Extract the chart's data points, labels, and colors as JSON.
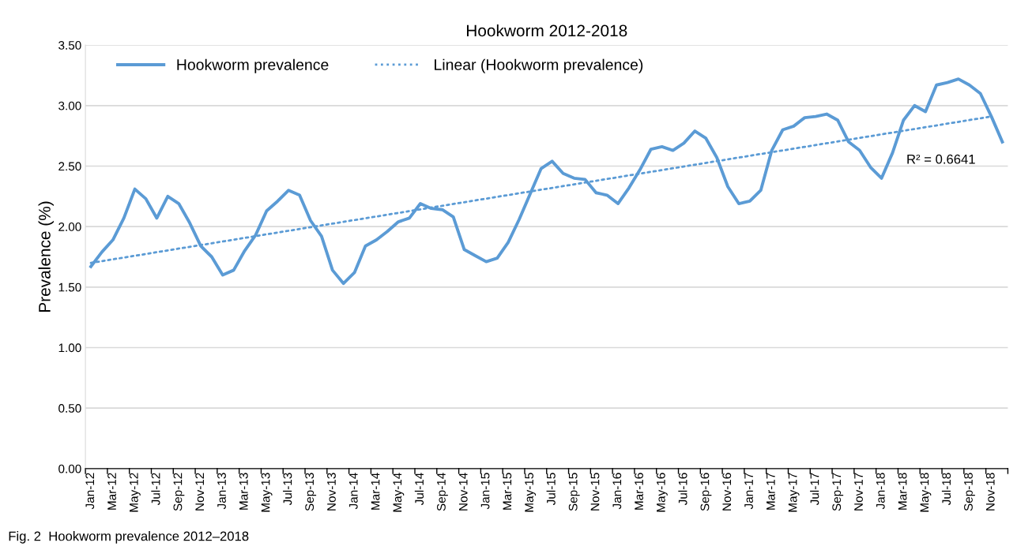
{
  "chart_data": {
    "type": "line",
    "title": "Hookworm 2012-2018",
    "ylabel": "Prevalence (%)",
    "categories": [
      "Jan-12",
      null,
      "Mar-12",
      null,
      "May-12",
      null,
      "Jul-12",
      null,
      "Sep-12",
      null,
      "Nov-12",
      null,
      "Jan-13",
      null,
      "Mar-13",
      null,
      "May-13",
      null,
      "Jul-13",
      null,
      "Sep-13",
      null,
      "Nov-13",
      null,
      "Jan-14",
      null,
      "Mar-14",
      null,
      "May-14",
      null,
      "Jul-14",
      null,
      "Sep-14",
      null,
      "Nov-14",
      null,
      "Jan-15",
      null,
      "Mar-15",
      null,
      "May-15",
      null,
      "Jul-15",
      null,
      "Sep-15",
      null,
      "Nov-15",
      null,
      "Jan-16",
      null,
      "Mar-16",
      null,
      "May-16",
      null,
      "Jul-16",
      null,
      "Sep-16",
      null,
      "Nov-16",
      null,
      "Jan-17",
      null,
      "Mar-17",
      null,
      "May-17",
      null,
      "Jul-17",
      null,
      "Sep-17",
      null,
      "Nov-17",
      null,
      "Jan-18",
      null,
      "Mar-18",
      null,
      "May-18",
      null,
      "Jul-18",
      null,
      "Sep-18",
      null,
      "Nov-18",
      null
    ],
    "series": [
      {
        "name": "Hookworm prevalence",
        "color": "#5b9bd5",
        "line_style": "solid",
        "values": [
          1.67,
          1.79,
          1.89,
          2.07,
          2.31,
          2.23,
          2.07,
          2.25,
          2.19,
          2.03,
          1.84,
          1.75,
          1.6,
          1.64,
          1.8,
          1.93,
          2.13,
          2.21,
          2.3,
          2.26,
          2.05,
          1.92,
          1.64,
          1.53,
          1.62,
          1.84,
          1.89,
          1.96,
          2.04,
          2.07,
          2.19,
          2.15,
          2.14,
          2.08,
          1.81,
          1.76,
          1.71,
          1.74,
          1.87,
          2.06,
          2.27,
          2.48,
          2.54,
          2.44,
          2.4,
          2.39,
          2.28,
          2.26,
          2.19,
          2.32,
          2.47,
          2.64,
          2.66,
          2.63,
          2.69,
          2.79,
          2.73,
          2.57,
          2.33,
          2.19,
          2.21,
          2.3,
          2.63,
          2.8,
          2.83,
          2.9,
          2.91,
          2.93,
          2.88,
          2.7,
          2.63,
          2.49,
          2.4,
          2.61,
          2.88,
          3.0,
          2.95,
          3.17,
          3.19,
          3.22,
          3.17,
          3.1,
          2.91,
          2.7
        ]
      },
      {
        "name": "Linear (Hookworm prevalence)",
        "color": "#5b9bd5",
        "line_style": "dotted",
        "x": [
          "Jan-12",
          "Nov-18"
        ],
        "values": [
          1.7,
          2.91
        ]
      }
    ],
    "ylim": [
      0,
      3.5
    ],
    "yticks": [
      {
        "value": 0,
        "label": "0.00"
      },
      {
        "value": 0.5,
        "label": "0.50"
      },
      {
        "value": 1,
        "label": "1.00"
      },
      {
        "value": 1.5,
        "label": "1.50"
      },
      {
        "value": 2,
        "label": "2.00"
      },
      {
        "value": 2.5,
        "label": "2.50"
      },
      {
        "value": 3,
        "label": "3.00"
      },
      {
        "value": 3.5,
        "label": "3.50"
      }
    ],
    "grid": "y",
    "legend": "top left",
    "marker": "none",
    "annotations": [
      "R² = 0.6641",
      "Fig. 2  Hookworm prevalence 2012–2018"
    ]
  }
}
